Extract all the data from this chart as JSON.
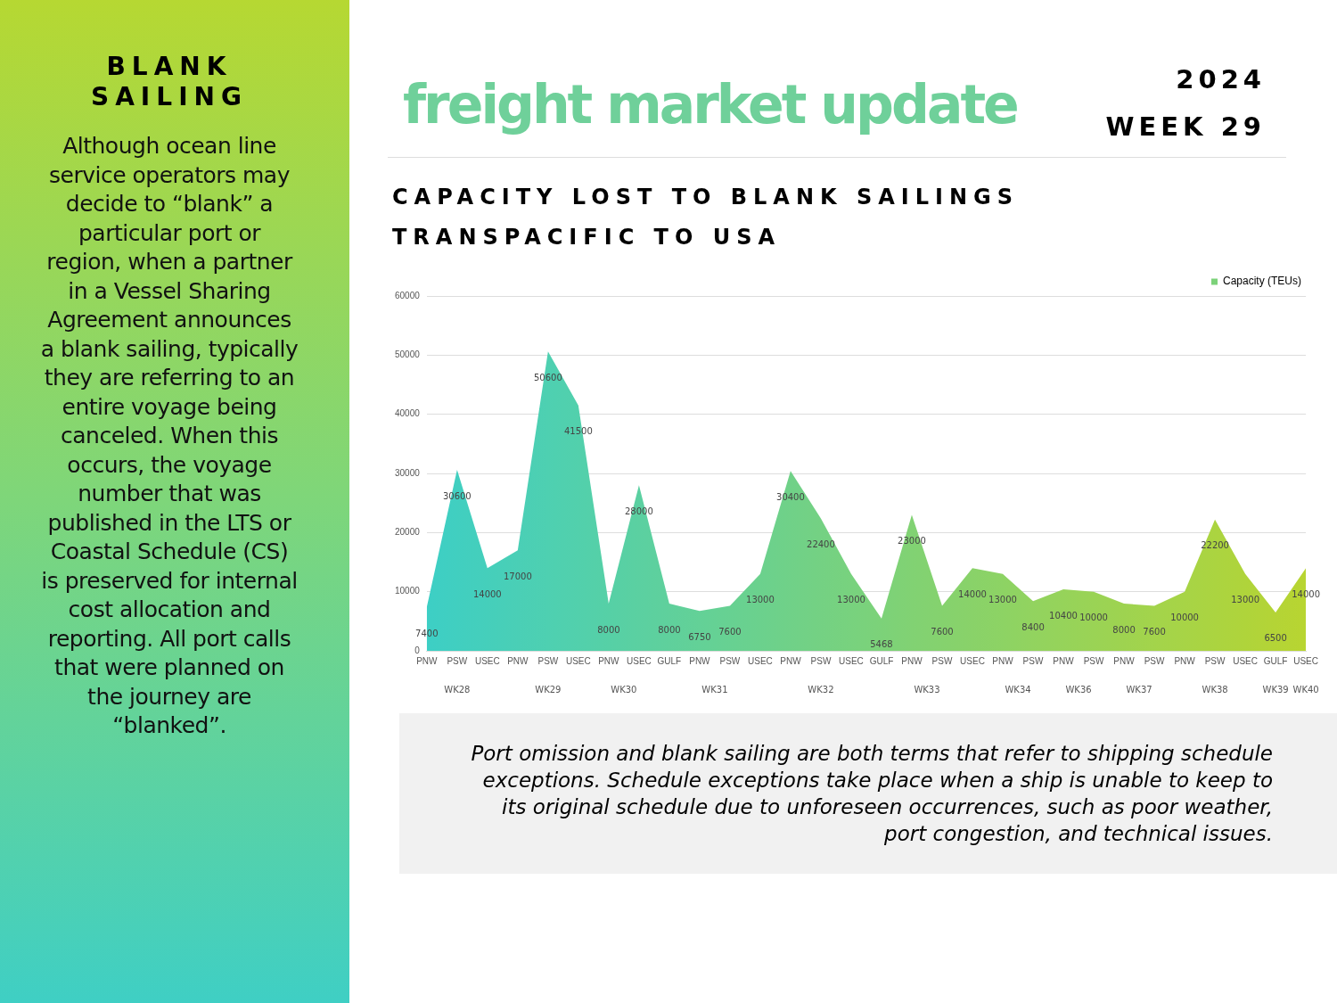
{
  "chart_data": {
    "type": "area",
    "title": "freight market update",
    "subtitle": "CAPACITY LOST TO BLANK SAILINGS",
    "categories": [
      "PNW",
      "PSW",
      "USEC",
      "PNW",
      "PSW",
      "USEC",
      "PNW",
      "USEC",
      "GULF",
      "PNW",
      "PSW",
      "USEC",
      "PNW",
      "PSW",
      "USEC",
      "GULF",
      "PNW",
      "PSW",
      "USEC",
      "PNW",
      "PSW",
      "PNW",
      "PSW",
      "PNW",
      "PSW",
      "PNW",
      "PSW",
      "USEC",
      "GULF",
      "USEC"
    ],
    "series": [
      {
        "name": "Capacity (TEUs)",
        "colors": [
          "#3dcfc5",
          "#41cfc0",
          "#45cfbb",
          "#4acfb6",
          "#4ed0b1",
          "#52d0ac",
          "#56d0a6",
          "#5bd0a1",
          "#5fd09c",
          "#63d197",
          "#67d192",
          "#6bd18d",
          "#70d188",
          "#74d183",
          "#78d27e",
          "#7cd279",
          "#81d273",
          "#85d26e",
          "#89d269",
          "#8dd364",
          "#92d35f",
          "#96d35a",
          "#9ad355",
          "#9ed350",
          "#a3d44b",
          "#a7d446",
          "#abd440",
          "#afd43b",
          "#b4d436",
          "#b8d531"
        ],
        "values": [
          7400,
          30600,
          14000,
          17000,
          50600,
          41500,
          8000,
          28000,
          8000,
          6750,
          7600,
          13000,
          30400,
          22400,
          13000,
          5468,
          23000,
          7600,
          14000,
          13000,
          8400,
          10400,
          10000,
          8000,
          7600,
          10000,
          22200,
          13000,
          6500,
          14000
        ]
      }
    ],
    "ylim": [
      0,
      60000
    ],
    "yticks": [
      0,
      10000,
      20000,
      30000,
      40000,
      50000,
      60000
    ],
    "grid": "y",
    "legend": "top right",
    "data_labels": true,
    "annotations": [
      "2024",
      "WEEK 29",
      "TRANSPACIFIC TO USA",
      "BLANK SAILING",
      "Although ocean line service operators may decide to “blank” a particular port or region, when a partner in a Vessel Sharing Agreement announces a blank sailing, typically they are referring to an entire voyage being canceled. When this occurs, the voyage number that was published in the LTS or Coastal Schedule (CS) is preserved for internal cost allocation and reporting. All port calls that were planned on the journey are “blanked”.",
      "Port omission and blank sailing are both terms that refer to shipping schedule exceptions. Schedule exceptions take place when a ship is unable to keep to its original schedule due to unforeseen occurrences, such as poor weather, port congestion, and technical issues.",
      "WK28",
      "WK29",
      "WK30",
      "WK31",
      "WK32",
      "WK33",
      "WK34",
      "WK36",
      "WK37",
      "WK38",
      "WK39",
      "WK40"
    ]
  }
}
